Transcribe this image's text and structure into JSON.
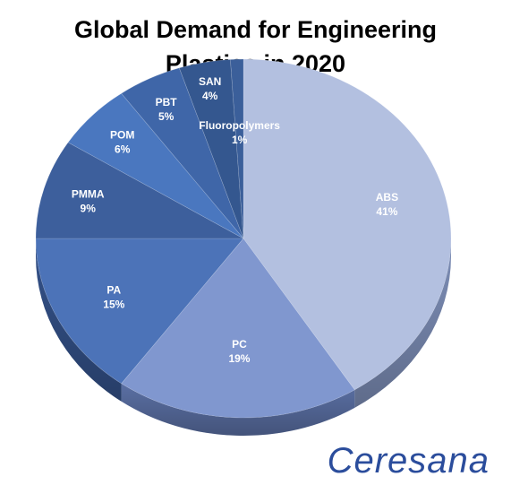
{
  "chart_data": {
    "type": "pie",
    "title_line1": "Global Demand for Engineering",
    "title_line2": "Plastics in 2020",
    "slices": [
      {
        "label": "ABS",
        "pct_label": "41%",
        "value": 41,
        "color": "#b3c0e0",
        "side": "#7e8fb8"
      },
      {
        "label": "PC",
        "pct_label": "19%",
        "value": 19,
        "color": "#8097cf",
        "side": "#5a6fa3"
      },
      {
        "label": "PA",
        "pct_label": "15%",
        "value": 15,
        "color": "#4c73b8",
        "side": "#34528a"
      },
      {
        "label": "PMMA",
        "pct_label": "9%",
        "value": 9,
        "color": "#3d5f9c",
        "side": "#2b4472"
      },
      {
        "label": "POM",
        "pct_label": "6%",
        "value": 6,
        "color": "#4a77bf",
        "side": "#34548a"
      },
      {
        "label": "PBT",
        "pct_label": "5%",
        "value": 5,
        "color": "#3f66a8",
        "side": "#2d4a7c"
      },
      {
        "label": "SAN",
        "pct_label": "4%",
        "value": 4,
        "color": "#34578f",
        "side": "#263f68"
      },
      {
        "label": "Fluoropolymers",
        "pct_label": "1%",
        "value": 1,
        "color": "#3b5f9a",
        "side": "#2b4572"
      }
    ]
  },
  "brand": "Ceresana"
}
